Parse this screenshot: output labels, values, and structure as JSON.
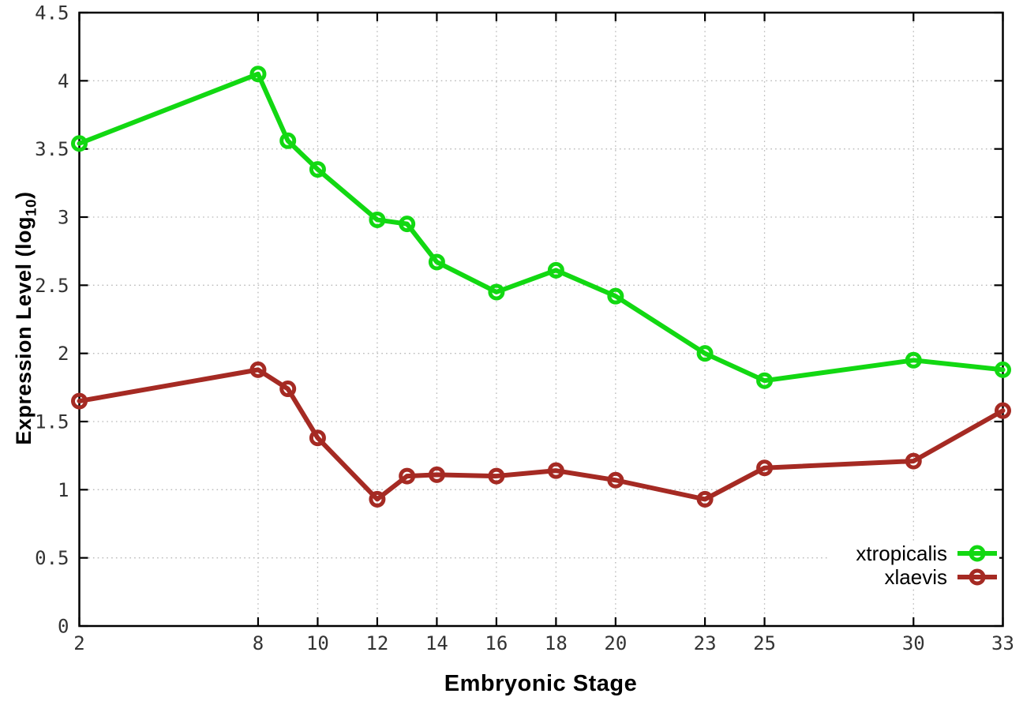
{
  "chart_data": {
    "type": "line",
    "title": "",
    "xlabel": "Embryonic Stage",
    "ylabel": "Expression Level (log10)",
    "ylabel_parts": {
      "prefix": "Expression Level (log",
      "sub": "10",
      "suffix": ")"
    },
    "xlim": [
      2,
      33
    ],
    "ylim": [
      0,
      4.5
    ],
    "x_ticks": [
      2,
      8,
      10,
      12,
      14,
      16,
      18,
      20,
      23,
      25,
      30,
      33
    ],
    "x_tick_labels": [
      "2",
      "8",
      "10",
      "12",
      "14",
      "16",
      "18",
      "20",
      "23",
      "25",
      "30",
      "33"
    ],
    "y_ticks": [
      0,
      0.5,
      1,
      1.5,
      2,
      2.5,
      3,
      3.5,
      4,
      4.5
    ],
    "y_tick_labels": [
      "0",
      "0.5",
      "1",
      "1.5",
      "2",
      "2.5",
      "3",
      "3.5",
      "4",
      "4.5"
    ],
    "grid": true,
    "legend_position": "bottom-right",
    "x": [
      2,
      8,
      9,
      10,
      12,
      13,
      14,
      16,
      18,
      20,
      23,
      25,
      30,
      33
    ],
    "series": [
      {
        "name": "xtropicalis",
        "color": "#12d812",
        "values": [
          3.54,
          4.05,
          3.56,
          3.35,
          2.98,
          2.95,
          2.67,
          2.45,
          2.61,
          2.42,
          2.0,
          1.8,
          1.95,
          1.88
        ]
      },
      {
        "name": "xlaevis",
        "color": "#a52a23",
        "values": [
          1.65,
          1.88,
          1.74,
          1.38,
          0.93,
          1.1,
          1.11,
          1.1,
          1.14,
          1.07,
          0.93,
          1.16,
          1.21,
          1.58
        ]
      }
    ],
    "style": {
      "grid_color": "#b8b8b8",
      "axis_color": "#000000",
      "tick_label_color": "#333333",
      "background": "#ffffff"
    }
  }
}
